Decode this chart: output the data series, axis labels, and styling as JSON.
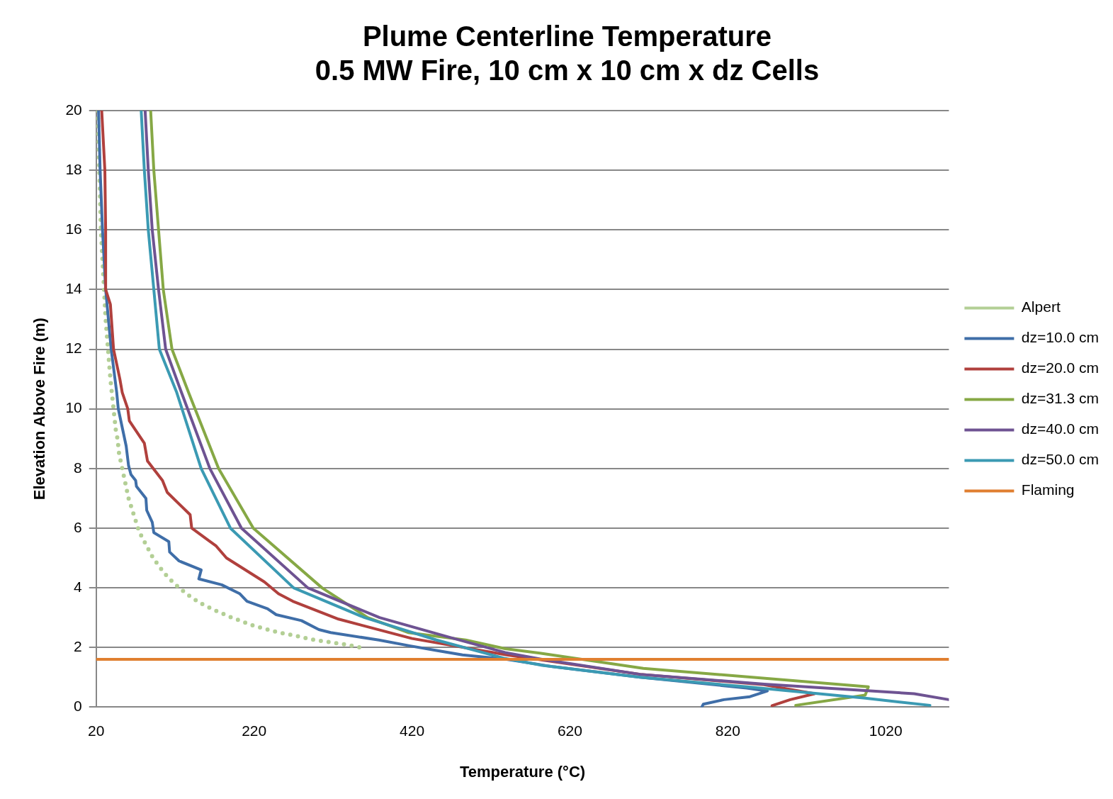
{
  "chart_data": {
    "type": "line",
    "title": "Plume Centerline Temperature",
    "subtitle": "0.5 MW Fire, 10 cm x 10 cm x dz Cells",
    "xlabel": "Temperature (°C)",
    "ylabel": "Elevation Above Fire (m)",
    "xlim": [
      20,
      1100
    ],
    "xticks": [
      20,
      220,
      420,
      620,
      820,
      1020
    ],
    "ylim": [
      0,
      20
    ],
    "yticks": [
      0,
      2,
      4,
      6,
      8,
      10,
      12,
      14,
      16,
      18,
      20
    ],
    "grid": "y",
    "legend": "right",
    "series": [
      {
        "name": "Alpert",
        "color": "#b3cf95",
        "line_style": "dotted",
        "x": [
          22,
          23,
          24,
          25,
          26,
          28,
          30,
          32,
          35,
          38,
          42,
          43,
          44,
          45,
          47,
          48,
          49,
          51,
          53,
          55,
          57,
          59,
          61,
          64,
          67,
          70,
          73,
          77,
          82,
          87,
          92,
          99,
          106,
          115,
          125,
          137,
          151,
          170,
          190,
          217,
          236,
          251,
          271,
          295,
          315,
          335,
          355
        ],
        "values": [
          20,
          19,
          18,
          17,
          16,
          15,
          14,
          13,
          12,
          11,
          10,
          9.75,
          9.5,
          9.25,
          9,
          8.75,
          8.5,
          8.25,
          8,
          7.75,
          7.5,
          7.25,
          7,
          6.75,
          6.5,
          6.25,
          6,
          5.75,
          5.5,
          5.25,
          5,
          4.75,
          4.5,
          4.25,
          4,
          3.75,
          3.5,
          3.25,
          3.02,
          2.75,
          2.61,
          2.5,
          2.4,
          2.26,
          2.18,
          2.1,
          2
        ]
      },
      {
        "name": "dz=10.0 cm",
        "color": "#3f6ea8",
        "line_style": "solid",
        "x": [
          23,
          25,
          28,
          32,
          39,
          46,
          48,
          52,
          58,
          61,
          64,
          70,
          71,
          83,
          84,
          91,
          93,
          112,
          113,
          125,
          153,
          150,
          179,
          202,
          211,
          237,
          248,
          280,
          302,
          317,
          378,
          418,
          451,
          484,
          540,
          600,
          709,
          844,
          870,
          848,
          815,
          789,
          787
        ],
        "values": [
          20,
          18,
          16,
          14,
          12,
          10.55,
          10,
          9.5,
          8.75,
          8.1,
          7.8,
          7.6,
          7.4,
          7,
          6.6,
          6.2,
          5.85,
          5.55,
          5.2,
          4.9,
          4.6,
          4.3,
          4.1,
          3.8,
          3.55,
          3.3,
          3.1,
          2.9,
          2.6,
          2.5,
          2.25,
          2.05,
          1.9,
          1.75,
          1.6,
          1.35,
          1,
          0.64,
          0.54,
          0.35,
          0.25,
          0.1,
          0
        ]
      },
      {
        "name": "dz=20.0 cm",
        "color": "#b0403d",
        "line_style": "solid",
        "x": [
          27,
          31,
          32,
          32,
          38,
          42,
          50,
          53,
          60,
          62,
          81,
          85,
          104,
          110,
          139,
          141,
          172,
          185,
          233,
          251,
          269,
          327,
          420,
          540,
          709,
          866,
          930,
          899,
          876
        ],
        "values": [
          20,
          18,
          16,
          14,
          13.5,
          12,
          11,
          10.55,
          10,
          9.6,
          8.85,
          8.25,
          7.6,
          7.2,
          6.45,
          6,
          5.4,
          5,
          4.2,
          3.8,
          3.55,
          2.95,
          2.3,
          1.75,
          1.1,
          0.75,
          0.45,
          0.25,
          0.05
        ]
      },
      {
        "name": "dz=31.3 cm",
        "color": "#86a845",
        "line_style": "solid",
        "x": [
          89,
          93,
          99,
          105,
          116,
          137,
          175,
          219,
          306,
          364,
          415,
          488,
          538,
          585,
          713,
          998,
          994,
          906
        ],
        "values": [
          20,
          18,
          16,
          14,
          12,
          10.55,
          8,
          6,
          4,
          3,
          2.5,
          2.25,
          1.96,
          1.8,
          1.3,
          0.68,
          0.4,
          0.06
        ]
      },
      {
        "name": "dz=40.0 cm",
        "color": "#6e5392",
        "line_style": "solid",
        "x": [
          82,
          86,
          91,
          99,
          108,
          128,
          164,
          204,
          288,
          379,
          469,
          538,
          585,
          709,
          866,
          1056,
          1100
        ],
        "values": [
          20,
          18,
          16,
          14,
          12,
          10.55,
          8,
          6,
          4,
          3,
          2.33,
          1.83,
          1.6,
          1.1,
          0.77,
          0.45,
          0.25
        ]
      },
      {
        "name": "dz=50.0 cm",
        "color": "#3b9ab3",
        "line_style": "solid",
        "x": [
          77,
          81,
          86,
          93,
          100,
          122,
          153,
          190,
          270,
          360,
          451,
          538,
          585,
          709,
          844,
          994,
          1076
        ],
        "values": [
          20,
          18,
          16,
          14,
          12,
          10.55,
          8,
          6,
          4,
          3,
          2.25,
          1.63,
          1.4,
          1,
          0.68,
          0.3,
          0.06
        ]
      },
      {
        "name": "Flaming",
        "color": "#e07f30",
        "line_style": "solid",
        "x": [
          20,
          1100
        ],
        "values": [
          1.6,
          1.6
        ]
      }
    ]
  }
}
